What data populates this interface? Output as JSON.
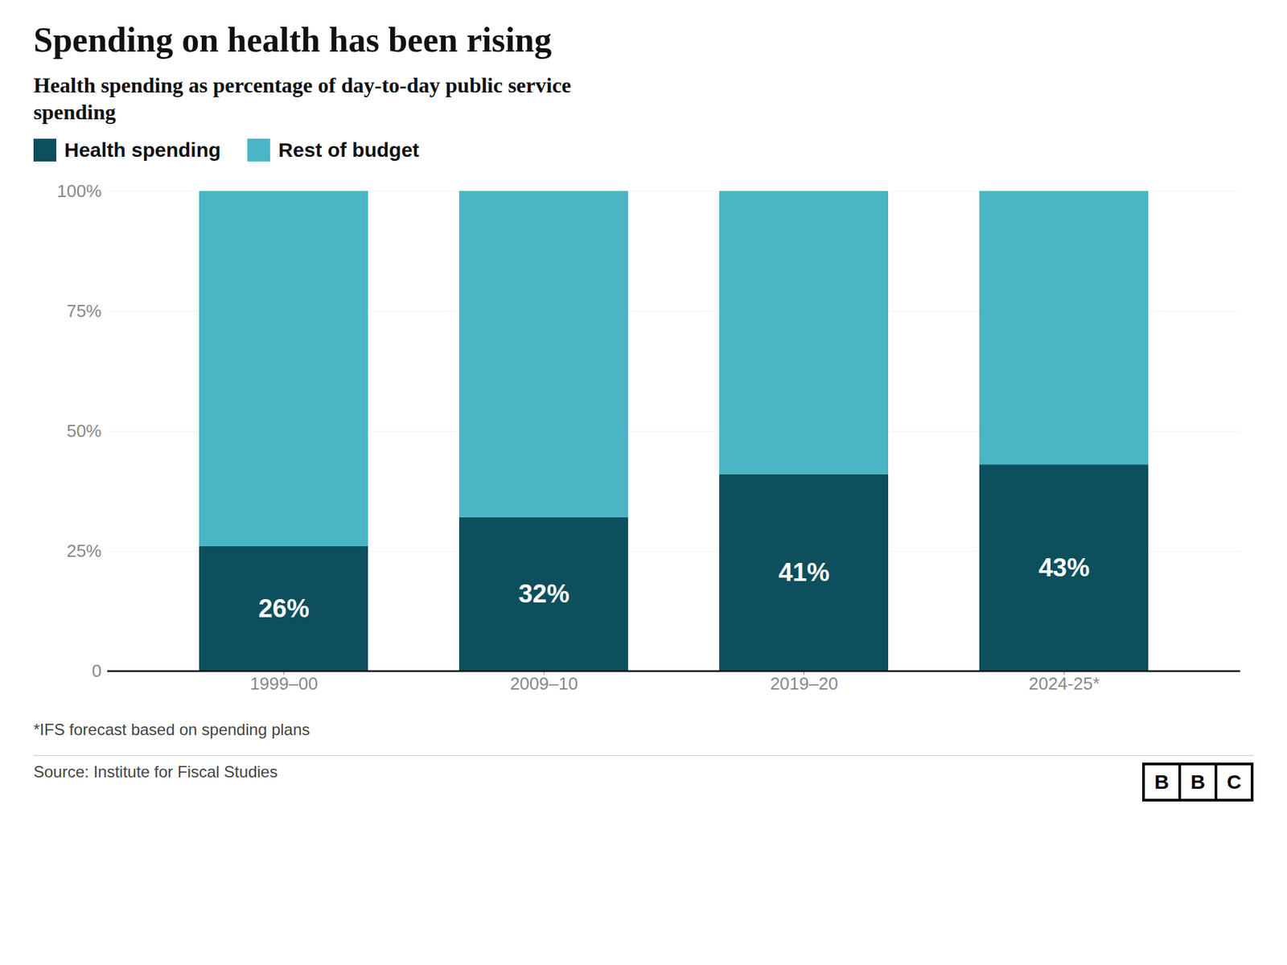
{
  "chart_data": {
    "type": "bar",
    "stacked": true,
    "title": "Spending on health has been rising",
    "subtitle": "Health spending as percentage of day-to-day public service\nspending",
    "categories": [
      "1999–00",
      "2009–10",
      "2019–20",
      "2024-25*"
    ],
    "series": [
      {
        "name": "Health spending",
        "color": "#0d4f5c",
        "values": [
          26,
          32,
          41,
          43
        ],
        "data_labels": true,
        "value_labels": [
          "26%",
          "32%",
          "41%",
          "43%"
        ]
      },
      {
        "name": "Rest of budget",
        "color": "#4ab5c4",
        "values": [
          74,
          68,
          59,
          57
        ]
      }
    ],
    "ylim": [
      0,
      100
    ],
    "yticks": [
      0,
      {
        "value": 25,
        "label": "25%"
      },
      {
        "value": 50,
        "label": "50%"
      },
      {
        "value": 75,
        "label": "75%"
      },
      {
        "value": 100,
        "label": "100%"
      }
    ],
    "grid": true,
    "legend": "top",
    "annotations": [
      "*IFS forecast based on spending plans",
      "Source: Institute for Fiscal Studies",
      "BBC"
    ]
  }
}
